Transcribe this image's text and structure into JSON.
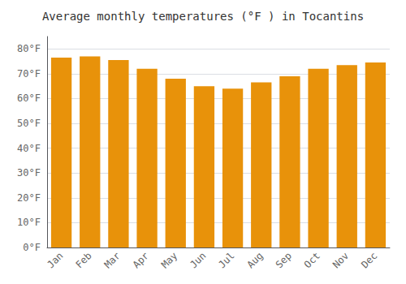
{
  "chart_data": {
    "type": "bar",
    "title": "Average monthly temperatures (°F ) in Tocantins",
    "categories": [
      "Jan",
      "Feb",
      "Mar",
      "Apr",
      "May",
      "Jun",
      "Jul",
      "Aug",
      "Sep",
      "Oct",
      "Nov",
      "Dec"
    ],
    "values": [
      76.5,
      77.0,
      75.5,
      72.0,
      68.0,
      65.0,
      64.0,
      66.5,
      69.0,
      72.0,
      73.5,
      74.5
    ],
    "color": "#E8920A",
    "ylim": [
      0,
      85
    ],
    "yticks": [
      {
        "value": 0,
        "label": "0°F"
      },
      {
        "value": 10,
        "label": "10°F"
      },
      {
        "value": 20,
        "label": "20°F"
      },
      {
        "value": 30,
        "label": "30°F"
      },
      {
        "value": 40,
        "label": "40°F"
      },
      {
        "value": 50,
        "label": "50°F"
      },
      {
        "value": 60,
        "label": "60°F"
      },
      {
        "value": 70,
        "label": "70°F"
      },
      {
        "value": 80,
        "label": "80°F"
      }
    ],
    "grid": true
  }
}
